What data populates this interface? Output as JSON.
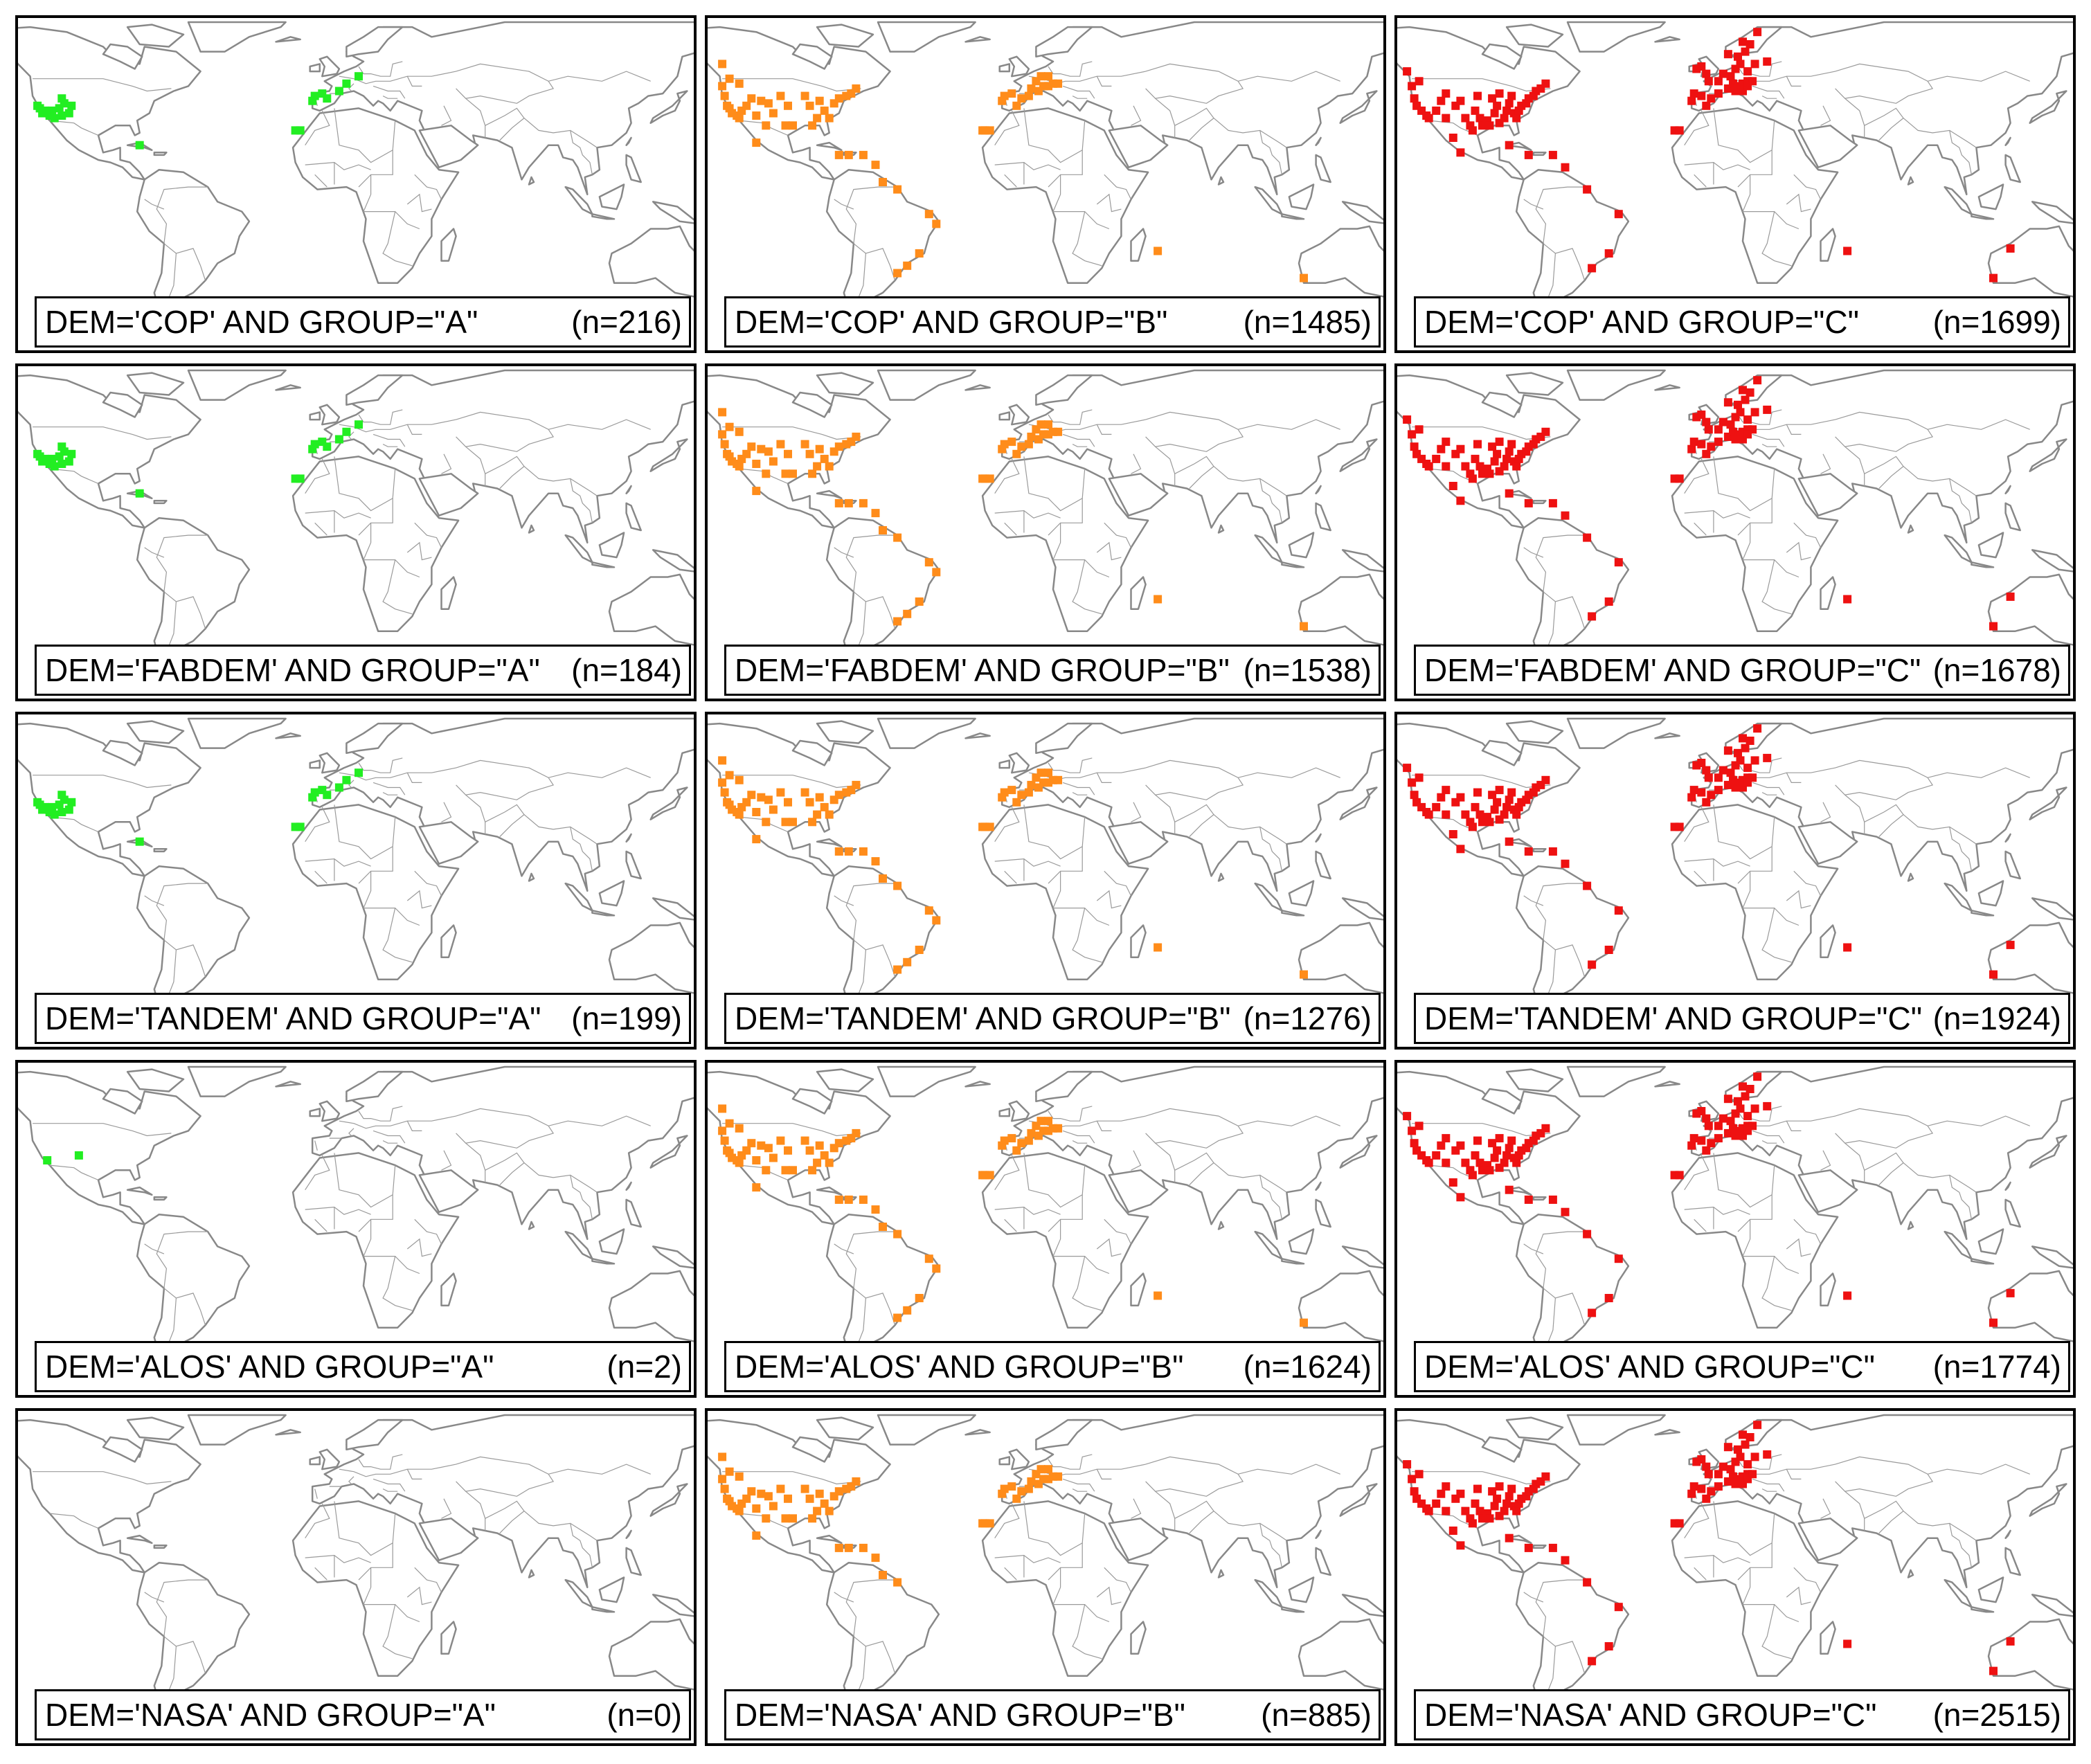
{
  "colors": {
    "A": "#22ee22",
    "B": "#ff8c1a",
    "C": "#ee1111",
    "land_outline": "#888888",
    "border": "#000000"
  },
  "groups": [
    "A",
    "B",
    "C"
  ],
  "rows": [
    {
      "dem": "COP",
      "panels": [
        {
          "query": "DEM='COP' AND GROUP=\"A\"",
          "count": "(n=216)"
        },
        {
          "query": "DEM='COP' AND GROUP=\"B\"",
          "count": "(n=1485)"
        },
        {
          "query": "DEM='COP' AND GROUP=\"C\"",
          "count": "(n=1699)"
        }
      ]
    },
    {
      "dem": "FABDEM",
      "panels": [
        {
          "query": "DEM='FABDEM' AND GROUP=\"A\"",
          "count": "(n=184)"
        },
        {
          "query": "DEM='FABDEM' AND GROUP=\"B\"",
          "count": "(n=1538)"
        },
        {
          "query": "DEM='FABDEM' AND GROUP=\"C\"",
          "count": "(n=1678)"
        }
      ]
    },
    {
      "dem": "TANDEM",
      "panels": [
        {
          "query": "DEM='TANDEM' AND GROUP=\"A\"",
          "count": "(n=199)"
        },
        {
          "query": "DEM='TANDEM' AND GROUP=\"B\"",
          "count": "(n=1276)"
        },
        {
          "query": "DEM='TANDEM' AND GROUP=\"C\"",
          "count": "(n=1924)"
        }
      ]
    },
    {
      "dem": "ALOS",
      "panels": [
        {
          "query": "DEM='ALOS' AND GROUP=\"A\"",
          "count": "(n=2)"
        },
        {
          "query": "DEM='ALOS' AND GROUP=\"B\"",
          "count": "(n=1624)"
        },
        {
          "query": "DEM='ALOS' AND GROUP=\"C\"",
          "count": "(n=1774)"
        }
      ]
    },
    {
      "dem": "NASA",
      "panels": [
        {
          "query": "DEM='NASA' AND GROUP=\"A\"",
          "count": "(n=0)"
        },
        {
          "query": "DEM='NASA' AND GROUP=\"B\"",
          "count": "(n=885)"
        },
        {
          "query": "DEM='NASA' AND GROUP=\"C\"",
          "count": "(n=2515)"
        }
      ]
    }
  ],
  "chart_data": {
    "type": "scatter",
    "description_units": "site markers in longitude/latitude degrees, approximate",
    "groups": {
      "A": {
        "color": "#22ee22",
        "regions": [
          "Southwest USA",
          "Caribbean",
          "Iberia",
          "Canary Islands"
        ]
      },
      "B": {
        "color": "#ff8c1a",
        "regions": [
          "USA",
          "Mexico",
          "Caribbean",
          "Brazil",
          "Iberia",
          "Alps",
          "Canary Islands",
          "Madagascar area",
          "Australia"
        ]
      },
      "C": {
        "color": "#ee1111",
        "regions": [
          "USA",
          "Caribbean",
          "Brazil",
          "Western Europe",
          "Scandinavia",
          "Canary Islands",
          "Madagascar area",
          "Australia"
        ]
      }
    },
    "map_extent": {
      "lon": [
        -130,
        150
      ],
      "lat": [
        -40,
        72
      ]
    }
  }
}
